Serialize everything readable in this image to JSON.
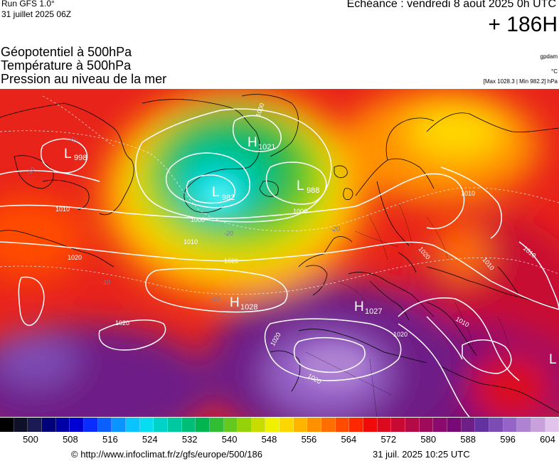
{
  "header": {
    "run_label": "Run GFS 1.0°",
    "run_date": "31 juillet 2025 06Z",
    "echeance": "Echéance : vendredi 8 aout 2025 0h UTC",
    "lead_time": "+ 186H"
  },
  "titles": {
    "line1": "Géopotentiel à 500hPa",
    "line2": "Température à 500hPa",
    "line3": "Pression au niveau de la mer"
  },
  "units": {
    "geopotential": "gpdam",
    "temperature": "°C",
    "pressure_range": "[Max 1028.3 | Min 982.2] hPa"
  },
  "map": {
    "pressure_centers": [
      {
        "type": "L",
        "value": "998"
      },
      {
        "type": "H",
        "value": "1021"
      },
      {
        "type": "L",
        "value": "982"
      },
      {
        "type": "L",
        "value": "988"
      },
      {
        "type": "H",
        "value": "1028"
      },
      {
        "type": "H",
        "value": "1027"
      },
      {
        "type": "L",
        "value": ""
      }
    ],
    "isobar_labels": [
      "1000",
      "1000",
      "1000",
      "1010",
      "1010",
      "1010",
      "1010",
      "1010",
      "1010",
      "1020",
      "1020",
      "1020",
      "1020",
      "1020",
      "1020",
      "1020"
    ],
    "temperature_labels": [
      "-10",
      "-10",
      "-20",
      "-20",
      "-10",
      "-10"
    ]
  },
  "colorbar": {
    "colors": [
      "#000000",
      "#10102a",
      "#1a1a55",
      "#00007a",
      "#0000a6",
      "#0000d2",
      "#0a2cff",
      "#0a60ff",
      "#0a94ff",
      "#0ac4ff",
      "#08dcf0",
      "#00d2c8",
      "#00c8a0",
      "#00be78",
      "#00b450",
      "#32be32",
      "#64c81e",
      "#96d20a",
      "#c8dc00",
      "#f0f000",
      "#ffd700",
      "#ffb400",
      "#ff9100",
      "#ff6e00",
      "#ff4b00",
      "#ff2800",
      "#f00a0a",
      "#dc0a1e",
      "#c80a32",
      "#b40a46",
      "#a00a5a",
      "#8c0a6e",
      "#780a78",
      "#6e1e87",
      "#6432a0",
      "#7d4bb4",
      "#9664c8",
      "#af82d2",
      "#c8a0dc",
      "#e1c3eb"
    ],
    "tick_labels": [
      "500",
      "508",
      "516",
      "524",
      "532",
      "540",
      "548",
      "556",
      "564",
      "572",
      "580",
      "588",
      "596",
      "604"
    ]
  },
  "footer": {
    "credit": "© http://www.infoclimat.fr/z/gfs/europe/500/186",
    "generated": "31 juil. 2025 10:25 UTC"
  }
}
